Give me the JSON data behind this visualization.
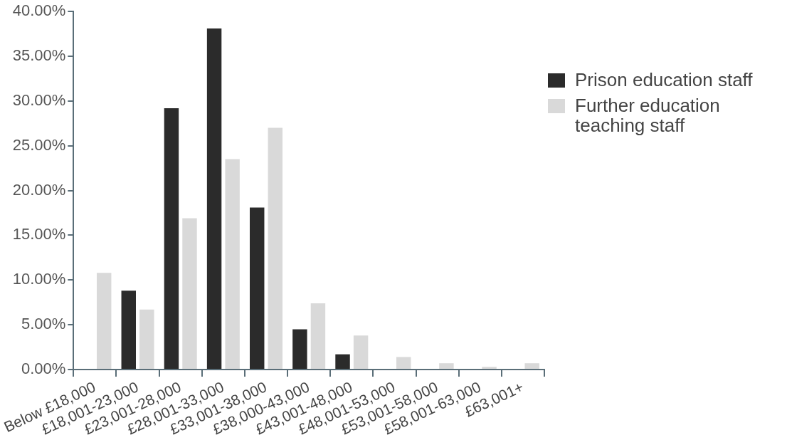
{
  "chart_data": {
    "type": "bar",
    "categories": [
      "Below £18,000",
      "£18,001-23,000",
      "£23,001-28,000",
      "£28,001-33,000",
      "£33,001-38,000",
      "£38,000-43,000",
      "£43,001-48,000",
      "£48,001-53,000",
      "£53,001-58,000",
      "£58,001-63,000",
      "£63,001+"
    ],
    "series": [
      {
        "name": "Prison education staff",
        "color": "#2b2b2b",
        "values": [
          0,
          8.8,
          29.2,
          38.1,
          18.1,
          4.5,
          1.7,
          0,
          0,
          0,
          0
        ]
      },
      {
        "name": "Further education teaching staff",
        "color": "#d9d9d9",
        "values": [
          10.8,
          6.7,
          16.9,
          23.5,
          27.0,
          7.4,
          3.8,
          1.4,
          0.7,
          0.3,
          0.7
        ]
      }
    ],
    "ylim": [
      0,
      40
    ],
    "yticks": [
      {
        "value": 0,
        "label": "0.00%"
      },
      {
        "value": 5,
        "label": "5.00%"
      },
      {
        "value": 10,
        "label": "10.00%"
      },
      {
        "value": 15,
        "label": "15.00%"
      },
      {
        "value": 20,
        "label": "20.00%"
      },
      {
        "value": 25,
        "label": "25.00%"
      },
      {
        "value": 30,
        "label": "30.00%"
      },
      {
        "value": 35,
        "label": "35.00%"
      },
      {
        "value": 40,
        "label": "40.00%"
      }
    ],
    "grid": false,
    "legend": "top right"
  }
}
